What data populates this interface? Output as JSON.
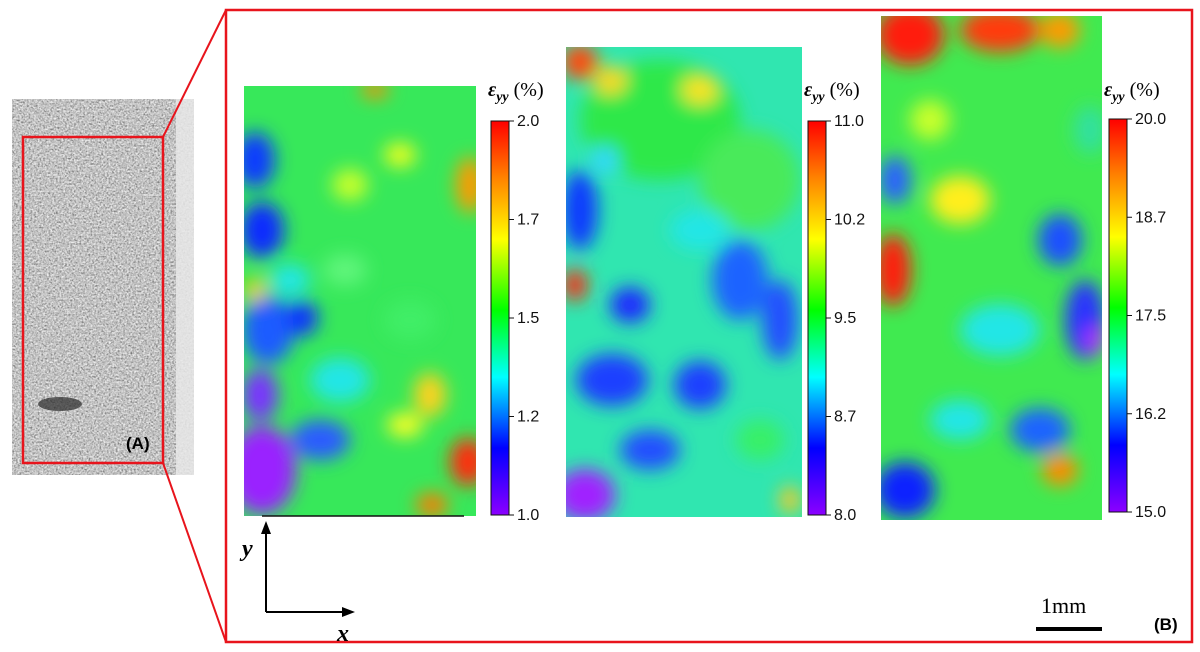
{
  "panels": {
    "a_label": "(A)",
    "b_label": "(B)"
  },
  "axes": {
    "x_label": "x",
    "y_label": "y"
  },
  "scale_bar": {
    "label": "1mm"
  },
  "colormap": [
    "#8b00ff",
    "#0000ff",
    "#00ffff",
    "#00ff00",
    "#ffff00",
    "#ff7f00",
    "#ff0000"
  ],
  "chart_data": [
    {
      "type": "heatmap",
      "title_symbol": "ε",
      "title_sub": "yy",
      "title_unit": " (%)",
      "colorbar_range": [
        1.0,
        2.0
      ],
      "colorbar_ticks": [
        "2.0",
        "1.7",
        "1.5",
        "1.2",
        "1.0"
      ]
    },
    {
      "type": "heatmap",
      "title_symbol": "ε",
      "title_sub": "yy",
      "title_unit": " (%)",
      "colorbar_range": [
        8.0,
        11.0
      ],
      "colorbar_ticks": [
        "11.0",
        "10.2",
        "9.5",
        "8.7",
        "8.0"
      ]
    },
    {
      "type": "heatmap",
      "title_symbol": "ε",
      "title_sub": "yy",
      "title_unit": " (%)",
      "colorbar_range": [
        15.0,
        20.0
      ],
      "colorbar_ticks": [
        "20.0",
        "18.7",
        "17.5",
        "16.2",
        "15.0"
      ]
    }
  ]
}
